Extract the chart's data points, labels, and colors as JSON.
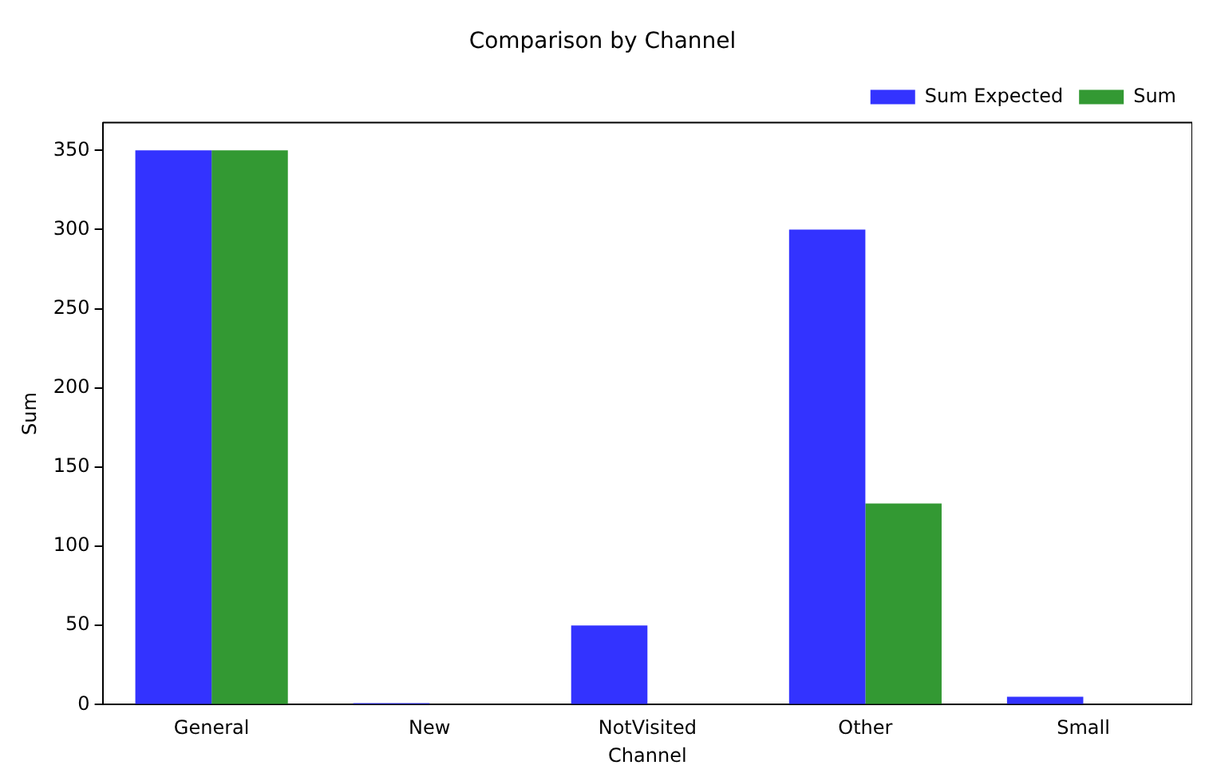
{
  "chart_data": {
    "type": "bar",
    "title": "Comparison by Channel",
    "xlabel": "Channel",
    "ylabel": "Sum",
    "categories": [
      "General",
      "New",
      "NotVisited",
      "Other",
      "Small"
    ],
    "series": [
      {
        "name": "Sum Expected",
        "color": "#3333ff",
        "values": [
          350,
          1,
          50,
          300,
          5
        ]
      },
      {
        "name": "Sum",
        "color": "#339933",
        "values": [
          350,
          0,
          0,
          127,
          0
        ]
      }
    ],
    "ylim": [
      0,
      367.5
    ],
    "yticks": [
      0,
      50,
      100,
      150,
      200,
      250,
      300,
      350
    ],
    "grid": false,
    "legend": "top right"
  }
}
